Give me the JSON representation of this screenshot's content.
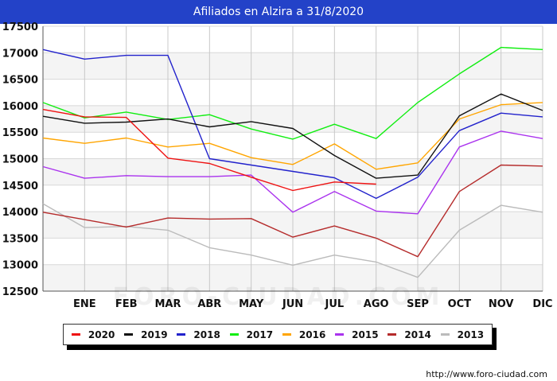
{
  "header": {
    "title": "Afiliados en Alzira a 31/8/2020"
  },
  "footer": {
    "url": "http://www.foro-ciudad.com"
  },
  "watermark": {
    "text": "FORO-CIUDAD.COM"
  },
  "chart_data": {
    "type": "line",
    "title": "Afiliados en Alzira a 31/8/2020",
    "categories": [
      "",
      "ENE",
      "FEB",
      "MAR",
      "ABR",
      "MAY",
      "JUN",
      "JUL",
      "AGO",
      "SEP",
      "OCT",
      "NOV",
      "DIC"
    ],
    "ylim": [
      12500,
      17500
    ],
    "yticks": [
      12500,
      13000,
      13500,
      14000,
      14500,
      15000,
      15500,
      16000,
      16500,
      17000,
      17500
    ],
    "grid": true,
    "legend_position": "bottom",
    "series": [
      {
        "name": "2013",
        "color": "#bbbbbb",
        "values": [
          14150,
          13700,
          13720,
          13650,
          13320,
          13180,
          12990,
          13180,
          13050,
          12760,
          13650,
          14120,
          13990
        ]
      },
      {
        "name": "2014",
        "color": "#b52b2b",
        "values": [
          13990,
          13850,
          13710,
          13880,
          13860,
          13870,
          13520,
          13730,
          13500,
          13150,
          14380,
          14880,
          14860
        ]
      },
      {
        "name": "2015",
        "color": "#aa33ee",
        "values": [
          14850,
          14630,
          14680,
          14660,
          14660,
          14690,
          13990,
          14380,
          14010,
          13960,
          15220,
          15520,
          15380
        ]
      },
      {
        "name": "2016",
        "color": "#ffa500",
        "values": [
          15390,
          15290,
          15390,
          15220,
          15290,
          15020,
          14890,
          15280,
          14800,
          14920,
          15750,
          16020,
          16060
        ]
      },
      {
        "name": "2017",
        "color": "#11ee11",
        "values": [
          16060,
          15770,
          15880,
          15740,
          15830,
          15560,
          15370,
          15650,
          15380,
          16060,
          16600,
          17100,
          17060
        ]
      },
      {
        "name": "2018",
        "color": "#2222cc",
        "values": [
          17060,
          16880,
          16950,
          16950,
          15000,
          14880,
          14760,
          14640,
          14250,
          14650,
          15530,
          15860,
          15790
        ]
      },
      {
        "name": "2019",
        "color": "#111111",
        "values": [
          15800,
          15670,
          15690,
          15750,
          15600,
          15700,
          15570,
          15060,
          14630,
          14690,
          15810,
          16220,
          15910
        ]
      },
      {
        "name": "2020",
        "color": "#ee1111",
        "values": [
          15930,
          15790,
          15780,
          15010,
          14910,
          14650,
          14400,
          14560,
          14520,
          null,
          null,
          null,
          null
        ]
      }
    ]
  },
  "legend_order": [
    "2020",
    "2019",
    "2018",
    "2017",
    "2016",
    "2015",
    "2014",
    "2013"
  ]
}
